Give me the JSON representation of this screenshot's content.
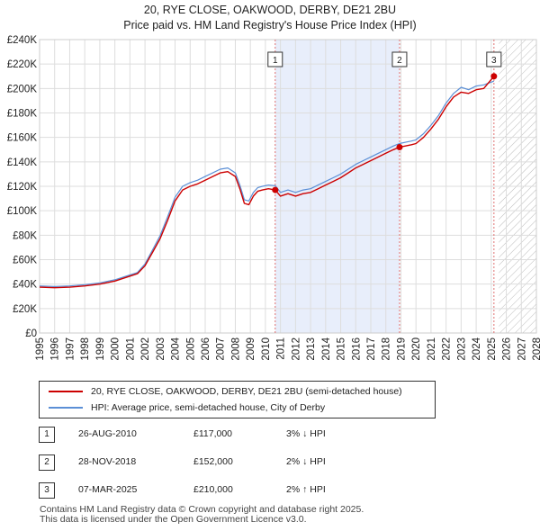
{
  "title_line1": "20, RYE CLOSE, OAKWOOD, DERBY, DE21 2BU",
  "title_line2": "Price paid vs. HM Land Registry's House Price Index (HPI)",
  "colors": {
    "property": "#cc0000",
    "hpi": "#5b8fd6",
    "shade": "#e8eefb",
    "grid": "#dddddd"
  },
  "chart_data": {
    "type": "line",
    "ylim": [
      0,
      240000
    ],
    "xlim": [
      1995,
      2028
    ],
    "y_ticks": [
      0,
      20000,
      40000,
      60000,
      80000,
      100000,
      120000,
      140000,
      160000,
      180000,
      200000,
      220000,
      240000
    ],
    "y_tick_labels": [
      "£0",
      "£20K",
      "£40K",
      "£60K",
      "£80K",
      "£100K",
      "£120K",
      "£140K",
      "£160K",
      "£180K",
      "£200K",
      "£220K",
      "£240K"
    ],
    "x_ticks": [
      1995,
      1996,
      1997,
      1998,
      1999,
      2000,
      2001,
      2002,
      2003,
      2004,
      2005,
      2006,
      2007,
      2008,
      2009,
      2010,
      2011,
      2012,
      2013,
      2014,
      2015,
      2016,
      2017,
      2018,
      2019,
      2020,
      2021,
      2022,
      2023,
      2024,
      2025,
      2026,
      2027,
      2028
    ],
    "x_tick_labels": [
      "1995",
      "1996",
      "1997",
      "1998",
      "1999",
      "2000",
      "2001",
      "2002",
      "2003",
      "2004",
      "2005",
      "2006",
      "2007",
      "2008",
      "2009",
      "2010",
      "2011",
      "2012",
      "2013",
      "2014",
      "2015",
      "2016",
      "2017",
      "2018",
      "2019",
      "2020",
      "2021",
      "2022",
      "2023",
      "2024",
      "2025",
      "2026",
      "2027",
      "2028"
    ],
    "series": [
      {
        "name": "20, RYE CLOSE, OAKWOOD, DERBY, DE21 2BU (semi-detached house)",
        "x": [
          1995.0,
          1996.0,
          1997.0,
          1998.0,
          1999.0,
          2000.0,
          2001.0,
          2001.5,
          2002.0,
          2002.5,
          2003.0,
          2003.5,
          2004.0,
          2004.5,
          2005.0,
          2005.5,
          2006.0,
          2006.5,
          2007.0,
          2007.5,
          2008.0,
          2008.3,
          2008.6,
          2008.9,
          2009.2,
          2009.5,
          2009.8,
          2010.2,
          2010.65,
          2011.0,
          2011.5,
          2012.0,
          2012.5,
          2013.0,
          2013.5,
          2014.0,
          2014.5,
          2015.0,
          2015.5,
          2016.0,
          2016.5,
          2017.0,
          2017.5,
          2018.0,
          2018.5,
          2018.91,
          2019.3,
          2019.7,
          2020.0,
          2020.5,
          2021.0,
          2021.5,
          2022.0,
          2022.5,
          2023.0,
          2023.5,
          2024.0,
          2024.5,
          2025.18
        ],
        "values": [
          37500,
          37000,
          37500,
          38500,
          40000,
          42500,
          46500,
          48500,
          55000,
          66000,
          77000,
          92000,
          108000,
          117000,
          120000,
          122000,
          125000,
          128000,
          131000,
          132000,
          128000,
          118000,
          106000,
          105000,
          112000,
          116000,
          117000,
          118000,
          117000,
          112000,
          114000,
          112000,
          114000,
          115000,
          118000,
          121000,
          124000,
          127000,
          131000,
          135000,
          138000,
          141000,
          144000,
          147000,
          150000,
          152000,
          153000,
          154000,
          155000,
          160000,
          167000,
          175000,
          185000,
          193000,
          197000,
          196000,
          199000,
          200000,
          210000
        ]
      },
      {
        "name": "HPI: Average price, semi-detached house, City of Derby",
        "x": [
          1995.0,
          1996.0,
          1997.0,
          1998.0,
          1999.0,
          2000.0,
          2001.0,
          2001.5,
          2002.0,
          2002.5,
          2003.0,
          2003.5,
          2004.0,
          2004.5,
          2005.0,
          2005.5,
          2006.0,
          2006.5,
          2007.0,
          2007.5,
          2008.0,
          2008.3,
          2008.6,
          2008.9,
          2009.2,
          2009.5,
          2009.8,
          2010.2,
          2010.65,
          2011.0,
          2011.5,
          2012.0,
          2012.5,
          2013.0,
          2013.5,
          2014.0,
          2014.5,
          2015.0,
          2015.5,
          2016.0,
          2016.5,
          2017.0,
          2017.5,
          2018.0,
          2018.5,
          2018.91,
          2019.3,
          2019.7,
          2020.0,
          2020.5,
          2021.0,
          2021.5,
          2022.0,
          2022.5,
          2023.0,
          2023.5,
          2024.0,
          2024.5,
          2025.18
        ],
        "values": [
          38500,
          38000,
          38500,
          39500,
          41000,
          43500,
          47500,
          49500,
          56500,
          68000,
          79500,
          95000,
          111000,
          120000,
          123000,
          125000,
          128000,
          131000,
          134000,
          135000,
          131000,
          121000,
          109000,
          108000,
          115000,
          119000,
          120000,
          121000,
          120500,
          115000,
          117000,
          115000,
          117000,
          118000,
          121000,
          124000,
          127000,
          130000,
          134000,
          138000,
          141000,
          144000,
          147000,
          150000,
          153000,
          155000,
          156000,
          157000,
          158000,
          163000,
          170000,
          178000,
          188000,
          196000,
          201000,
          199000,
          202000,
          203000,
          206000
        ]
      }
    ],
    "markers": [
      {
        "label": "1",
        "x": 2010.65,
        "y": 117000
      },
      {
        "label": "2",
        "x": 2018.91,
        "y": 152000
      },
      {
        "label": "3",
        "x": 2025.18,
        "y": 210000
      }
    ],
    "shaded_region": [
      2010.65,
      2018.91
    ],
    "hatched_region": [
      2025.5,
      2028
    ]
  },
  "legend": {
    "property_label": "20, RYE CLOSE, OAKWOOD, DERBY, DE21 2BU (semi-detached house)",
    "hpi_label": "HPI: Average price, semi-detached house, City of Derby"
  },
  "sales": [
    {
      "num": "1",
      "date": "26-AUG-2010",
      "price": "£117,000",
      "hpi": "3% ↓ HPI"
    },
    {
      "num": "2",
      "date": "28-NOV-2018",
      "price": "£152,000",
      "hpi": "2% ↓ HPI"
    },
    {
      "num": "3",
      "date": "07-MAR-2025",
      "price": "£210,000",
      "hpi": "2% ↑ HPI"
    }
  ],
  "footer_line1": "Contains HM Land Registry data © Crown copyright and database right 2025.",
  "footer_line2": "This data is licensed under the Open Government Licence v3.0."
}
